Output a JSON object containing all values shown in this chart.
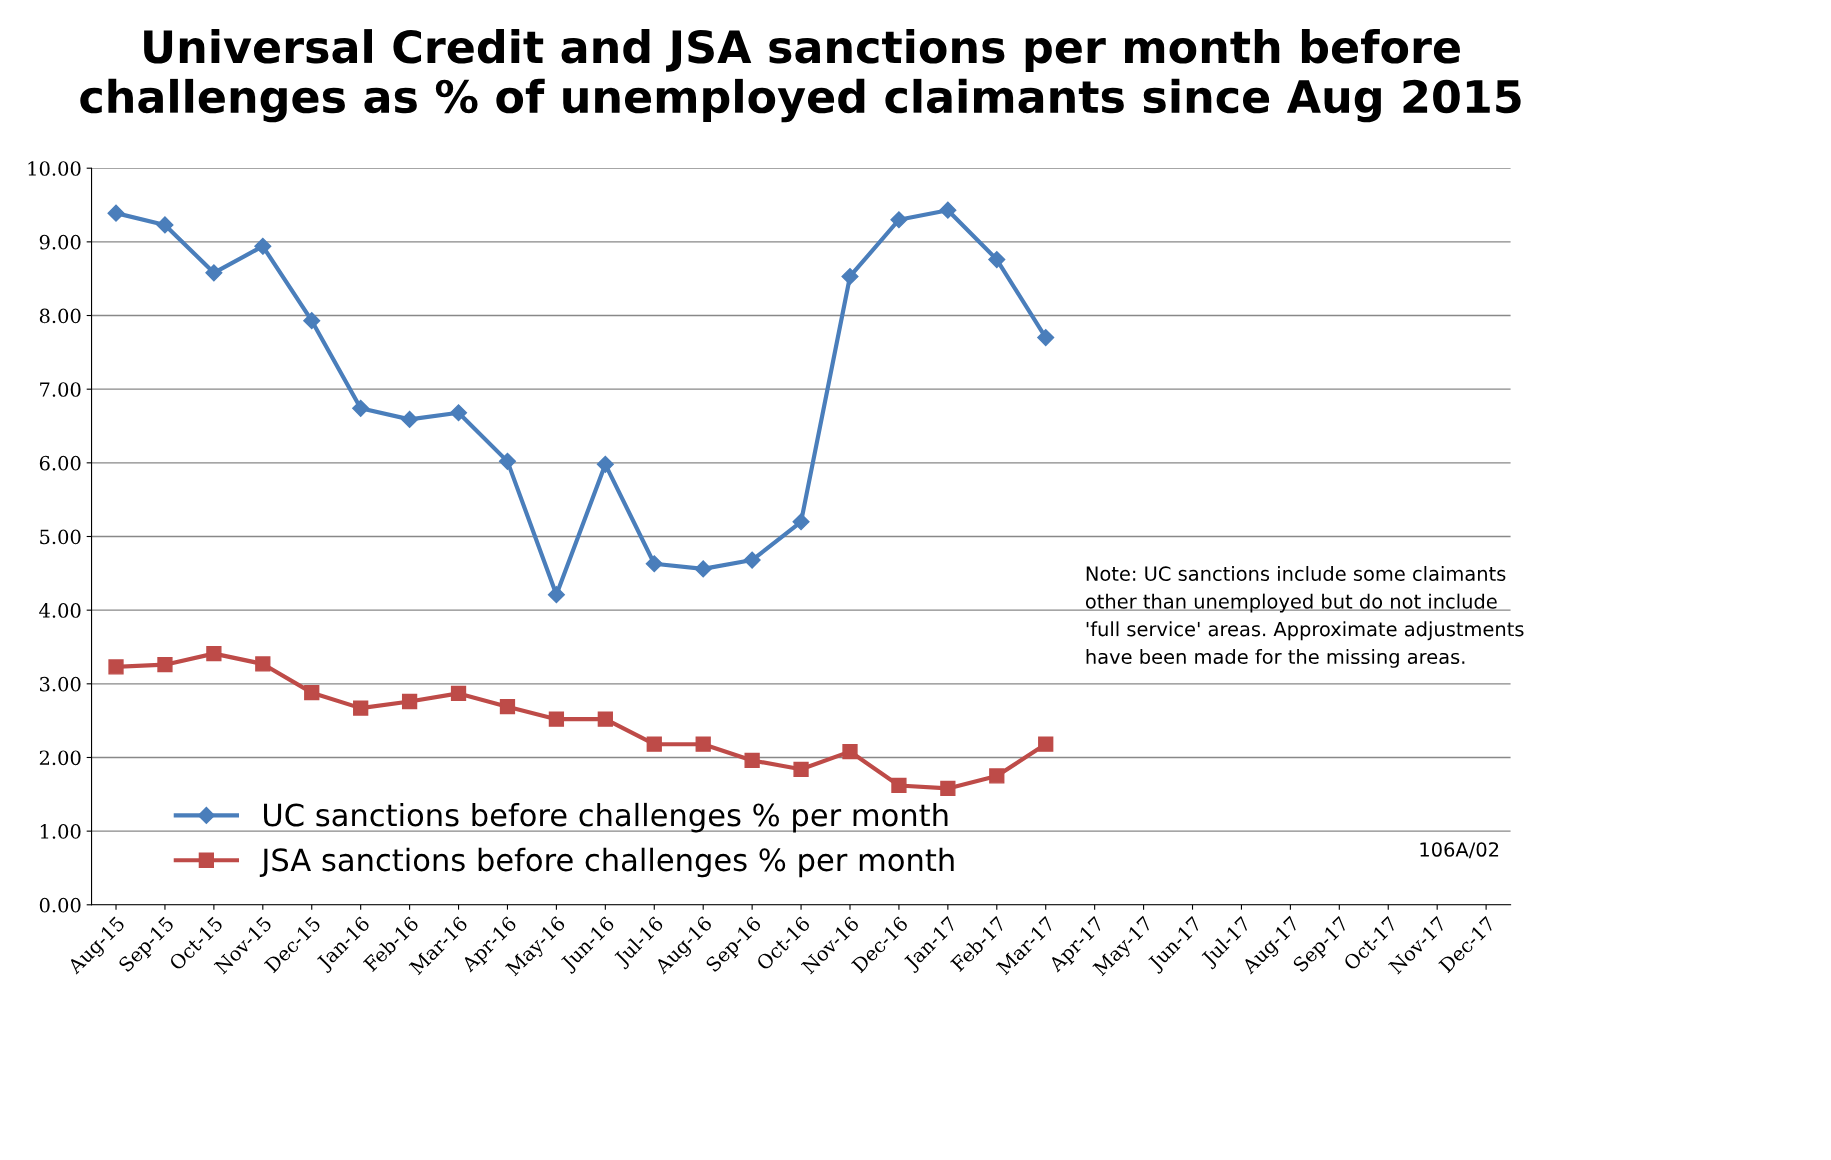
{
  "chart_data": {
    "type": "line",
    "title": "Universal Credit and JSA sanctions per month before\nchallenges as % of unemployed claimants since Aug 2015",
    "categories": [
      "Aug-15",
      "Sep-15",
      "Oct-15",
      "Nov-15",
      "Dec-15",
      "Jan-16",
      "Feb-16",
      "Mar-16",
      "Apr-16",
      "May-16",
      "Jun-16",
      "Jul-16",
      "Aug-16",
      "Sep-16",
      "Oct-16",
      "Nov-16",
      "Dec-16",
      "Jan-17",
      "Feb-17",
      "Mar-17",
      "Apr-17",
      "May-17",
      "Jun-17",
      "Jul-17",
      "Aug-17",
      "Sep-17",
      "Oct-17",
      "Nov-17",
      "Dec-17"
    ],
    "series": [
      {
        "name": "UC sanctions before challenges % per month",
        "color": "#4a7ebb",
        "marker": "diamond",
        "values": [
          9.39,
          9.23,
          8.58,
          8.94,
          7.93,
          6.74,
          6.59,
          6.68,
          6.02,
          4.21,
          5.98,
          4.63,
          4.56,
          4.68,
          5.2,
          8.53,
          9.3,
          9.43,
          8.76,
          7.7,
          null,
          null,
          null,
          null,
          null,
          null,
          null,
          null,
          null
        ]
      },
      {
        "name": "JSA sanctions before challenges % per month",
        "color": "#be4b48",
        "marker": "square",
        "values": [
          3.23,
          3.26,
          3.41,
          3.27,
          2.88,
          2.67,
          2.76,
          2.87,
          2.69,
          2.52,
          2.52,
          2.18,
          2.18,
          1.96,
          1.84,
          2.08,
          1.62,
          1.58,
          1.75,
          2.18,
          null,
          null,
          null,
          null,
          null,
          null,
          null,
          null,
          null
        ]
      }
    ],
    "ylim": [
      0,
      10
    ],
    "yticks": [
      {
        "value": 0,
        "label": "0.00"
      },
      {
        "value": 1,
        "label": "1.00"
      },
      {
        "value": 2,
        "label": "2.00"
      },
      {
        "value": 3,
        "label": "3.00"
      },
      {
        "value": 4,
        "label": "4.00"
      },
      {
        "value": 5,
        "label": "5.00"
      },
      {
        "value": 6,
        "label": "6.00"
      },
      {
        "value": 7,
        "label": "7.00"
      },
      {
        "value": 8,
        "label": "8.00"
      },
      {
        "value": 9,
        "label": "9.00"
      },
      {
        "value": 10,
        "label": "10.00"
      }
    ],
    "grid": "y",
    "legend": "bottom left",
    "line_style": "solid",
    "annotations": [
      "Note: UC sanctions include some claimants\nother than unemployed but do not include\n'full service' areas. Approximate adjustments\nhave been made for the missing areas.",
      "106A/02"
    ]
  }
}
